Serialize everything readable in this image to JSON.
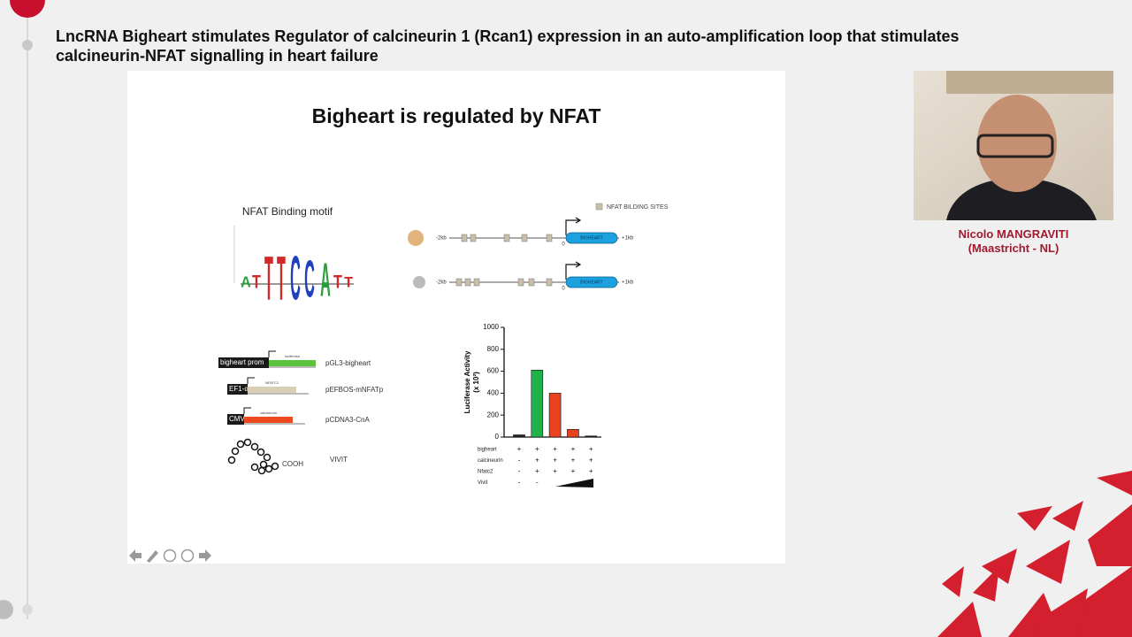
{
  "header": {
    "title": "LncRNA Bigheart stimulates Regulator of calcineurin 1 (Rcan1) expression in an auto-amplification loop that stimulates calcineurin-NFAT signalling in heart failure"
  },
  "slide": {
    "title": "Bigheart is regulated by NFAT",
    "motif": {
      "title": "NFAT Binding motif",
      "letters": [
        "A",
        "T",
        "T",
        "T",
        "C",
        "C",
        "A",
        "T",
        "T"
      ]
    },
    "genes": {
      "legend": "NFAT BILDING SITES",
      "left": "-2kb",
      "right": "+1kb",
      "start": "0",
      "gene": "BIGHEART"
    },
    "constructs": [
      {
        "box": "bigheart prom",
        "insert": "luciferase",
        "name": "pGL3-bigheart"
      },
      {
        "box": "EF1-α",
        "insert": "NFATC2",
        "name": "pEFBOS-mNFATp"
      },
      {
        "box": "CMV",
        "insert": "calcineurin",
        "name": "pCDNA3-CnA"
      }
    ],
    "peptide": {
      "end": "COOH",
      "name": "VIVIT"
    },
    "chart": {
      "type": "bar",
      "y_label": "Luciferase Activity",
      "y_unit": "(x 10²)",
      "ylim": [
        0,
        1000
      ],
      "yticks": [
        0,
        200,
        400,
        600,
        800,
        1000
      ],
      "values": [
        20,
        610,
        400,
        70,
        10
      ],
      "colors": [
        "#222222",
        "#1fb24a",
        "#e8431e",
        "#e8431e",
        "#222222"
      ],
      "conditions": [
        {
          "name": "bigheart",
          "signs": [
            "+",
            "+",
            "+",
            "+",
            "+"
          ]
        },
        {
          "name": "calcineurin",
          "signs": [
            "-",
            "+",
            "+",
            "+",
            "+"
          ]
        },
        {
          "name": "Nfatc2",
          "signs": [
            "-",
            "+",
            "+",
            "+",
            "+"
          ]
        },
        {
          "name": "Vivit",
          "signs": [
            "-",
            "-"
          ]
        }
      ]
    }
  },
  "speaker": {
    "name": "Nicolo MANGRAVITI",
    "affiliation": "(Maastricht - NL)"
  }
}
